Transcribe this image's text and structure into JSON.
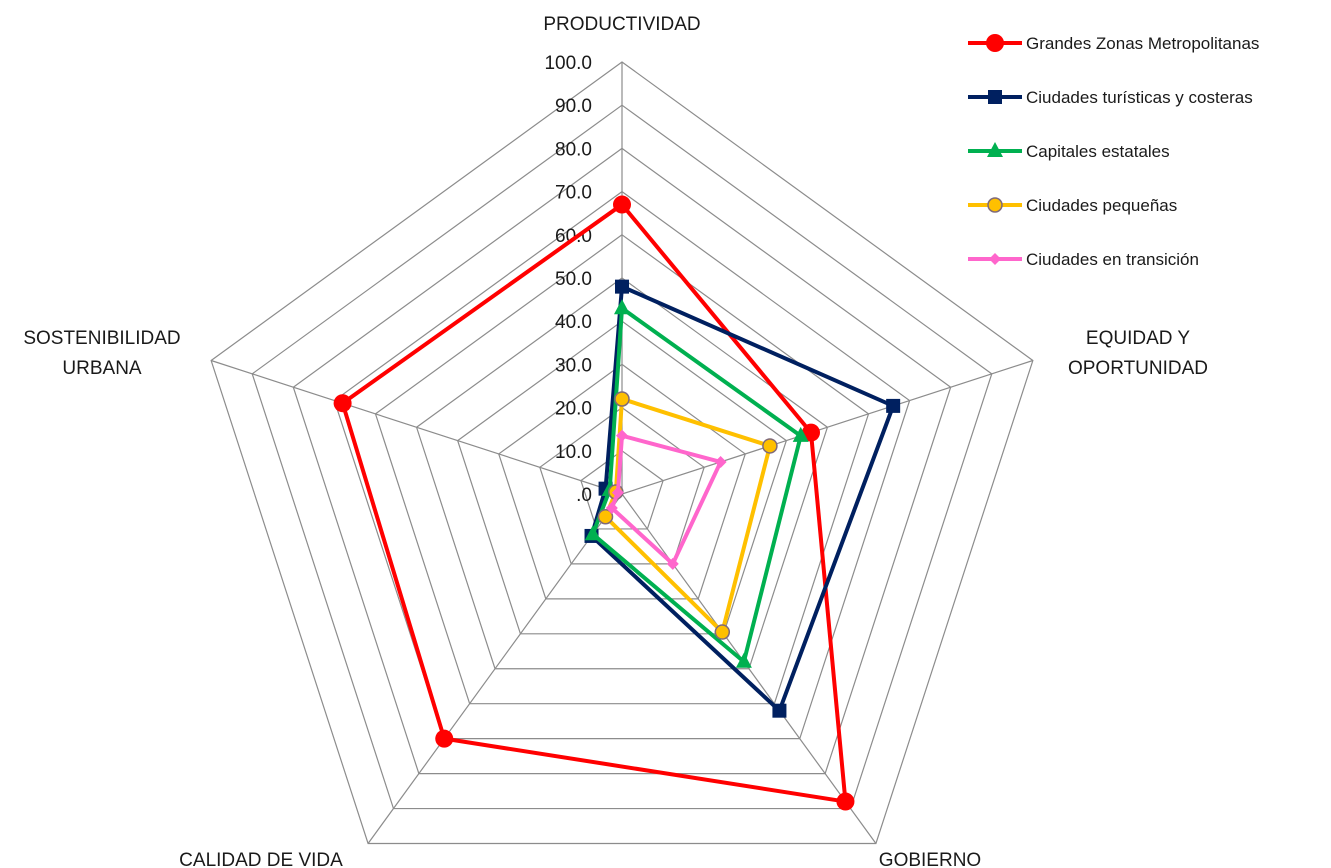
{
  "chart_data": {
    "type": "radar",
    "title": "",
    "axes": [
      "PRODUCTIVIDAD",
      "EQUIDAD Y OPORTUNIDAD",
      "GOBIERNO",
      "CALIDAD DE VIDA",
      "SOSTENIBILIDAD URBANA"
    ],
    "ticks": [
      "100.0",
      "90.0",
      "80.0",
      "70.0",
      "60.0",
      "50.0",
      "40.0",
      "30.0",
      "20.0",
      "10.0",
      ".0"
    ],
    "rlim": [
      0,
      100
    ],
    "grid": true,
    "legend_position": "top-right",
    "series": [
      {
        "name": "Grandes Zonas Metropolitanas",
        "color": "#ff0000",
        "marker": "circle",
        "values": [
          67.0,
          46.0,
          88.0,
          70.0,
          68.0
        ]
      },
      {
        "name": "Ciudades turísticas y costeras",
        "color": "#002060",
        "marker": "square",
        "values": [
          48.0,
          66.0,
          62.0,
          12.0,
          4.0
        ]
      },
      {
        "name": "Capitales estatales",
        "color": "#00b050",
        "marker": "triangle",
        "values": [
          43.0,
          43.5,
          48.0,
          11.5,
          3.0
        ]
      },
      {
        "name": "Ciudades pequeñas",
        "color": "#ffc000",
        "marker": "circle-small",
        "values": [
          22.0,
          36.0,
          39.5,
          6.5,
          1.5
        ]
      },
      {
        "name": "Ciudades en transición",
        "color": "#ff66cc",
        "marker": "diamond",
        "values": [
          13.5,
          24.0,
          20.0,
          4.0,
          1.0
        ]
      }
    ]
  }
}
